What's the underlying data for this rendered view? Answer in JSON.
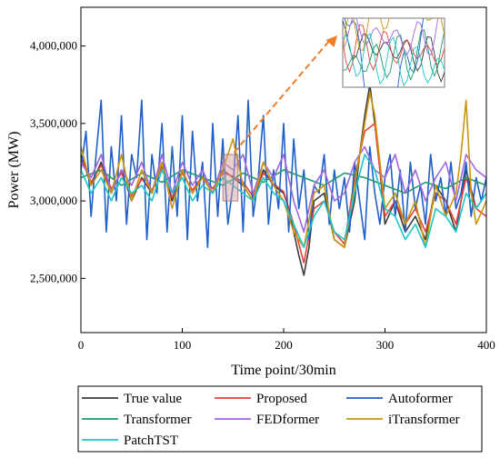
{
  "chart_data": {
    "type": "line",
    "title": "",
    "xlabel": "Time point/30min",
    "ylabel": "Power (MW)",
    "xlim": [
      0,
      400
    ],
    "ylim": [
      2150000,
      4250000
    ],
    "x_ticks": [
      0,
      100,
      200,
      300,
      400
    ],
    "x_tick_labels": [
      "0",
      "100",
      "200",
      "300",
      "400"
    ],
    "y_ticks": [
      2500000,
      3000000,
      3500000,
      4000000
    ],
    "y_tick_labels": [
      "2,500,000",
      "3,000,000",
      "3,500,000",
      "4,000,000"
    ],
    "grid": false,
    "legend_position": "bottom",
    "inset": {
      "source_x_range": [
        140,
        155
      ],
      "source_y_range": [
        3000000,
        3300000
      ],
      "note": "zoomed inset of highlighted region"
    },
    "series": [
      {
        "name": "True value",
        "color": "#3c3c3c",
        "x": [
          0,
          10,
          20,
          30,
          40,
          50,
          60,
          70,
          80,
          90,
          100,
          110,
          120,
          130,
          140,
          150,
          160,
          170,
          180,
          190,
          200,
          205,
          210,
          215,
          220,
          225,
          230,
          240,
          250,
          260,
          270,
          275,
          280,
          285,
          290,
          295,
          300,
          310,
          320,
          330,
          340,
          350,
          360,
          370,
          380,
          390,
          400
        ],
        "y": [
          3300000,
          3100000,
          3250000,
          3050000,
          3200000,
          3000000,
          3150000,
          3050000,
          3250000,
          3000000,
          3200000,
          3050000,
          3150000,
          3050000,
          3200000,
          3150000,
          3100000,
          3000000,
          3200000,
          3100000,
          3050000,
          2950000,
          2800000,
          2650000,
          2520000,
          2700000,
          3000000,
          3050000,
          2750000,
          2700000,
          3000000,
          3300000,
          3550000,
          3750000,
          3500000,
          3200000,
          2850000,
          3000000,
          2800000,
          2900000,
          2750000,
          3100000,
          3000000,
          2800000,
          3200000,
          2950000,
          3050000
        ]
      },
      {
        "name": "Proposed",
        "color": "#e8413c",
        "x": [
          0,
          10,
          20,
          30,
          40,
          50,
          60,
          70,
          80,
          90,
          100,
          110,
          120,
          130,
          140,
          150,
          160,
          170,
          180,
          190,
          200,
          210,
          220,
          230,
          240,
          250,
          260,
          270,
          280,
          290,
          300,
          310,
          320,
          330,
          340,
          350,
          360,
          370,
          380,
          390,
          400
        ],
        "y": [
          3280000,
          3120000,
          3230000,
          3080000,
          3180000,
          3030000,
          3140000,
          3070000,
          3220000,
          3020000,
          3180000,
          3070000,
          3160000,
          3080000,
          3180000,
          3160000,
          3120000,
          3030000,
          3180000,
          3110000,
          3060000,
          2850000,
          2600000,
          2950000,
          3000000,
          2800000,
          2720000,
          3150000,
          3450000,
          3500000,
          2900000,
          3000000,
          2850000,
          2950000,
          2800000,
          3050000,
          3000000,
          2850000,
          3150000,
          2950000,
          2900000
        ]
      },
      {
        "name": "Autoformer",
        "color": "#1f5fc8",
        "x": [
          0,
          5,
          10,
          15,
          20,
          25,
          30,
          35,
          40,
          45,
          50,
          55,
          60,
          65,
          70,
          75,
          80,
          85,
          90,
          95,
          100,
          105,
          110,
          115,
          120,
          125,
          130,
          135,
          140,
          145,
          150,
          155,
          160,
          165,
          170,
          175,
          180,
          185,
          190,
          195,
          200,
          205,
          210,
          215,
          220,
          225,
          230,
          235,
          240,
          245,
          250,
          255,
          260,
          265,
          270,
          275,
          280,
          285,
          290,
          295,
          300,
          305,
          310,
          315,
          320,
          325,
          330,
          335,
          340,
          345,
          350,
          355,
          360,
          365,
          370,
          375,
          380,
          385,
          390,
          395,
          400
        ],
        "y": [
          3200000,
          3450000,
          2900000,
          3300000,
          3650000,
          2800000,
          3350000,
          3000000,
          3550000,
          2850000,
          3300000,
          3150000,
          3650000,
          2750000,
          3300000,
          3050000,
          3500000,
          2800000,
          3350000,
          2900000,
          3550000,
          2750000,
          3450000,
          3000000,
          3250000,
          2700000,
          3500000,
          2900000,
          3400000,
          2850000,
          3100000,
          3550000,
          2800000,
          3650000,
          2900000,
          3150000,
          3550000,
          2850000,
          3200000,
          2950000,
          3500000,
          2800000,
          3400000,
          2950000,
          3200000,
          2750000,
          3100000,
          3050000,
          3300000,
          2850000,
          3200000,
          2950000,
          3150000,
          2800000,
          3250000,
          3000000,
          2750000,
          3350000,
          3050000,
          2850000,
          3150000,
          3300000,
          2900000,
          3200000,
          2800000,
          3250000,
          2950000,
          3100000,
          2850000,
          3300000,
          3000000,
          3150000,
          2900000,
          3250000,
          2950000,
          3050000,
          3250000,
          2900000,
          3150000,
          3000000,
          3150000
        ]
      },
      {
        "name": "Transformer",
        "color": "#1f9a6c",
        "x": [
          0,
          20,
          40,
          60,
          80,
          100,
          120,
          140,
          160,
          180,
          200,
          220,
          240,
          260,
          280,
          300,
          320,
          340,
          360,
          380,
          400
        ],
        "y": [
          3150000,
          3200000,
          3100000,
          3180000,
          3120000,
          3200000,
          3150000,
          3100000,
          3180000,
          3120000,
          3200000,
          3150000,
          3100000,
          3180000,
          3150000,
          3100000,
          3050000,
          3120000,
          3080000,
          3150000,
          3100000
        ]
      },
      {
        "name": "FEDformer",
        "color": "#a066e0",
        "x": [
          0,
          10,
          20,
          30,
          40,
          50,
          60,
          70,
          80,
          90,
          100,
          110,
          120,
          130,
          140,
          150,
          160,
          170,
          180,
          190,
          200,
          210,
          220,
          230,
          240,
          250,
          260,
          270,
          280,
          290,
          300,
          310,
          320,
          330,
          340,
          350,
          360,
          370,
          380,
          390,
          400
        ],
        "y": [
          3250000,
          3150000,
          3300000,
          3050000,
          3200000,
          3100000,
          3250000,
          3050000,
          3300000,
          3050000,
          3250000,
          3100000,
          3200000,
          3050000,
          3250000,
          3200000,
          3300000,
          3050000,
          3250000,
          3150000,
          3300000,
          3000000,
          2800000,
          3100000,
          3200000,
          3000000,
          3050000,
          3250000,
          3350000,
          3200000,
          3150000,
          3300000,
          3050000,
          3200000,
          3000000,
          3150000,
          3250000,
          3000000,
          3300000,
          3200000,
          3150000
        ]
      },
      {
        "name": "iTransformer",
        "color": "#c9960c",
        "x": [
          0,
          10,
          20,
          30,
          40,
          50,
          60,
          70,
          80,
          90,
          100,
          110,
          120,
          130,
          140,
          150,
          160,
          170,
          180,
          190,
          200,
          210,
          220,
          230,
          240,
          250,
          260,
          270,
          280,
          285,
          290,
          300,
          310,
          320,
          330,
          340,
          350,
          360,
          370,
          375,
          380,
          385,
          390,
          400
        ],
        "y": [
          3350000,
          3100000,
          3200000,
          3050000,
          3300000,
          3000000,
          3200000,
          3050000,
          3250000,
          2950000,
          3200000,
          3050000,
          3150000,
          3050000,
          3200000,
          3400000,
          3100000,
          3000000,
          3250000,
          3100000,
          3000000,
          2800000,
          2700000,
          3050000,
          3100000,
          2750000,
          2700000,
          3100000,
          3500000,
          3700000,
          3550000,
          2950000,
          3050000,
          2850000,
          3000000,
          2700000,
          3100000,
          2900000,
          3050000,
          3300000,
          3650000,
          3050000,
          2850000,
          3000000
        ]
      },
      {
        "name": "PatchTST",
        "color": "#1cc6c8",
        "x": [
          0,
          10,
          20,
          30,
          40,
          50,
          60,
          70,
          80,
          90,
          100,
          110,
          120,
          130,
          140,
          150,
          160,
          170,
          180,
          190,
          200,
          210,
          220,
          230,
          240,
          250,
          260,
          270,
          280,
          290,
          300,
          310,
          320,
          330,
          340,
          350,
          360,
          370,
          380,
          390,
          400
        ],
        "y": [
          3200000,
          3050000,
          3150000,
          3000000,
          3150000,
          3050000,
          3100000,
          3000000,
          3200000,
          3050000,
          3150000,
          3000000,
          3100000,
          3050000,
          3150000,
          3100000,
          3050000,
          3000000,
          3150000,
          3050000,
          3000000,
          2850000,
          2700000,
          2900000,
          3000000,
          2800000,
          2750000,
          3050000,
          3300000,
          3200000,
          2950000,
          2900000,
          2750000,
          2850000,
          2700000,
          2950000,
          2900000,
          2800000,
          3050000,
          2950000,
          3050000
        ]
      }
    ]
  }
}
